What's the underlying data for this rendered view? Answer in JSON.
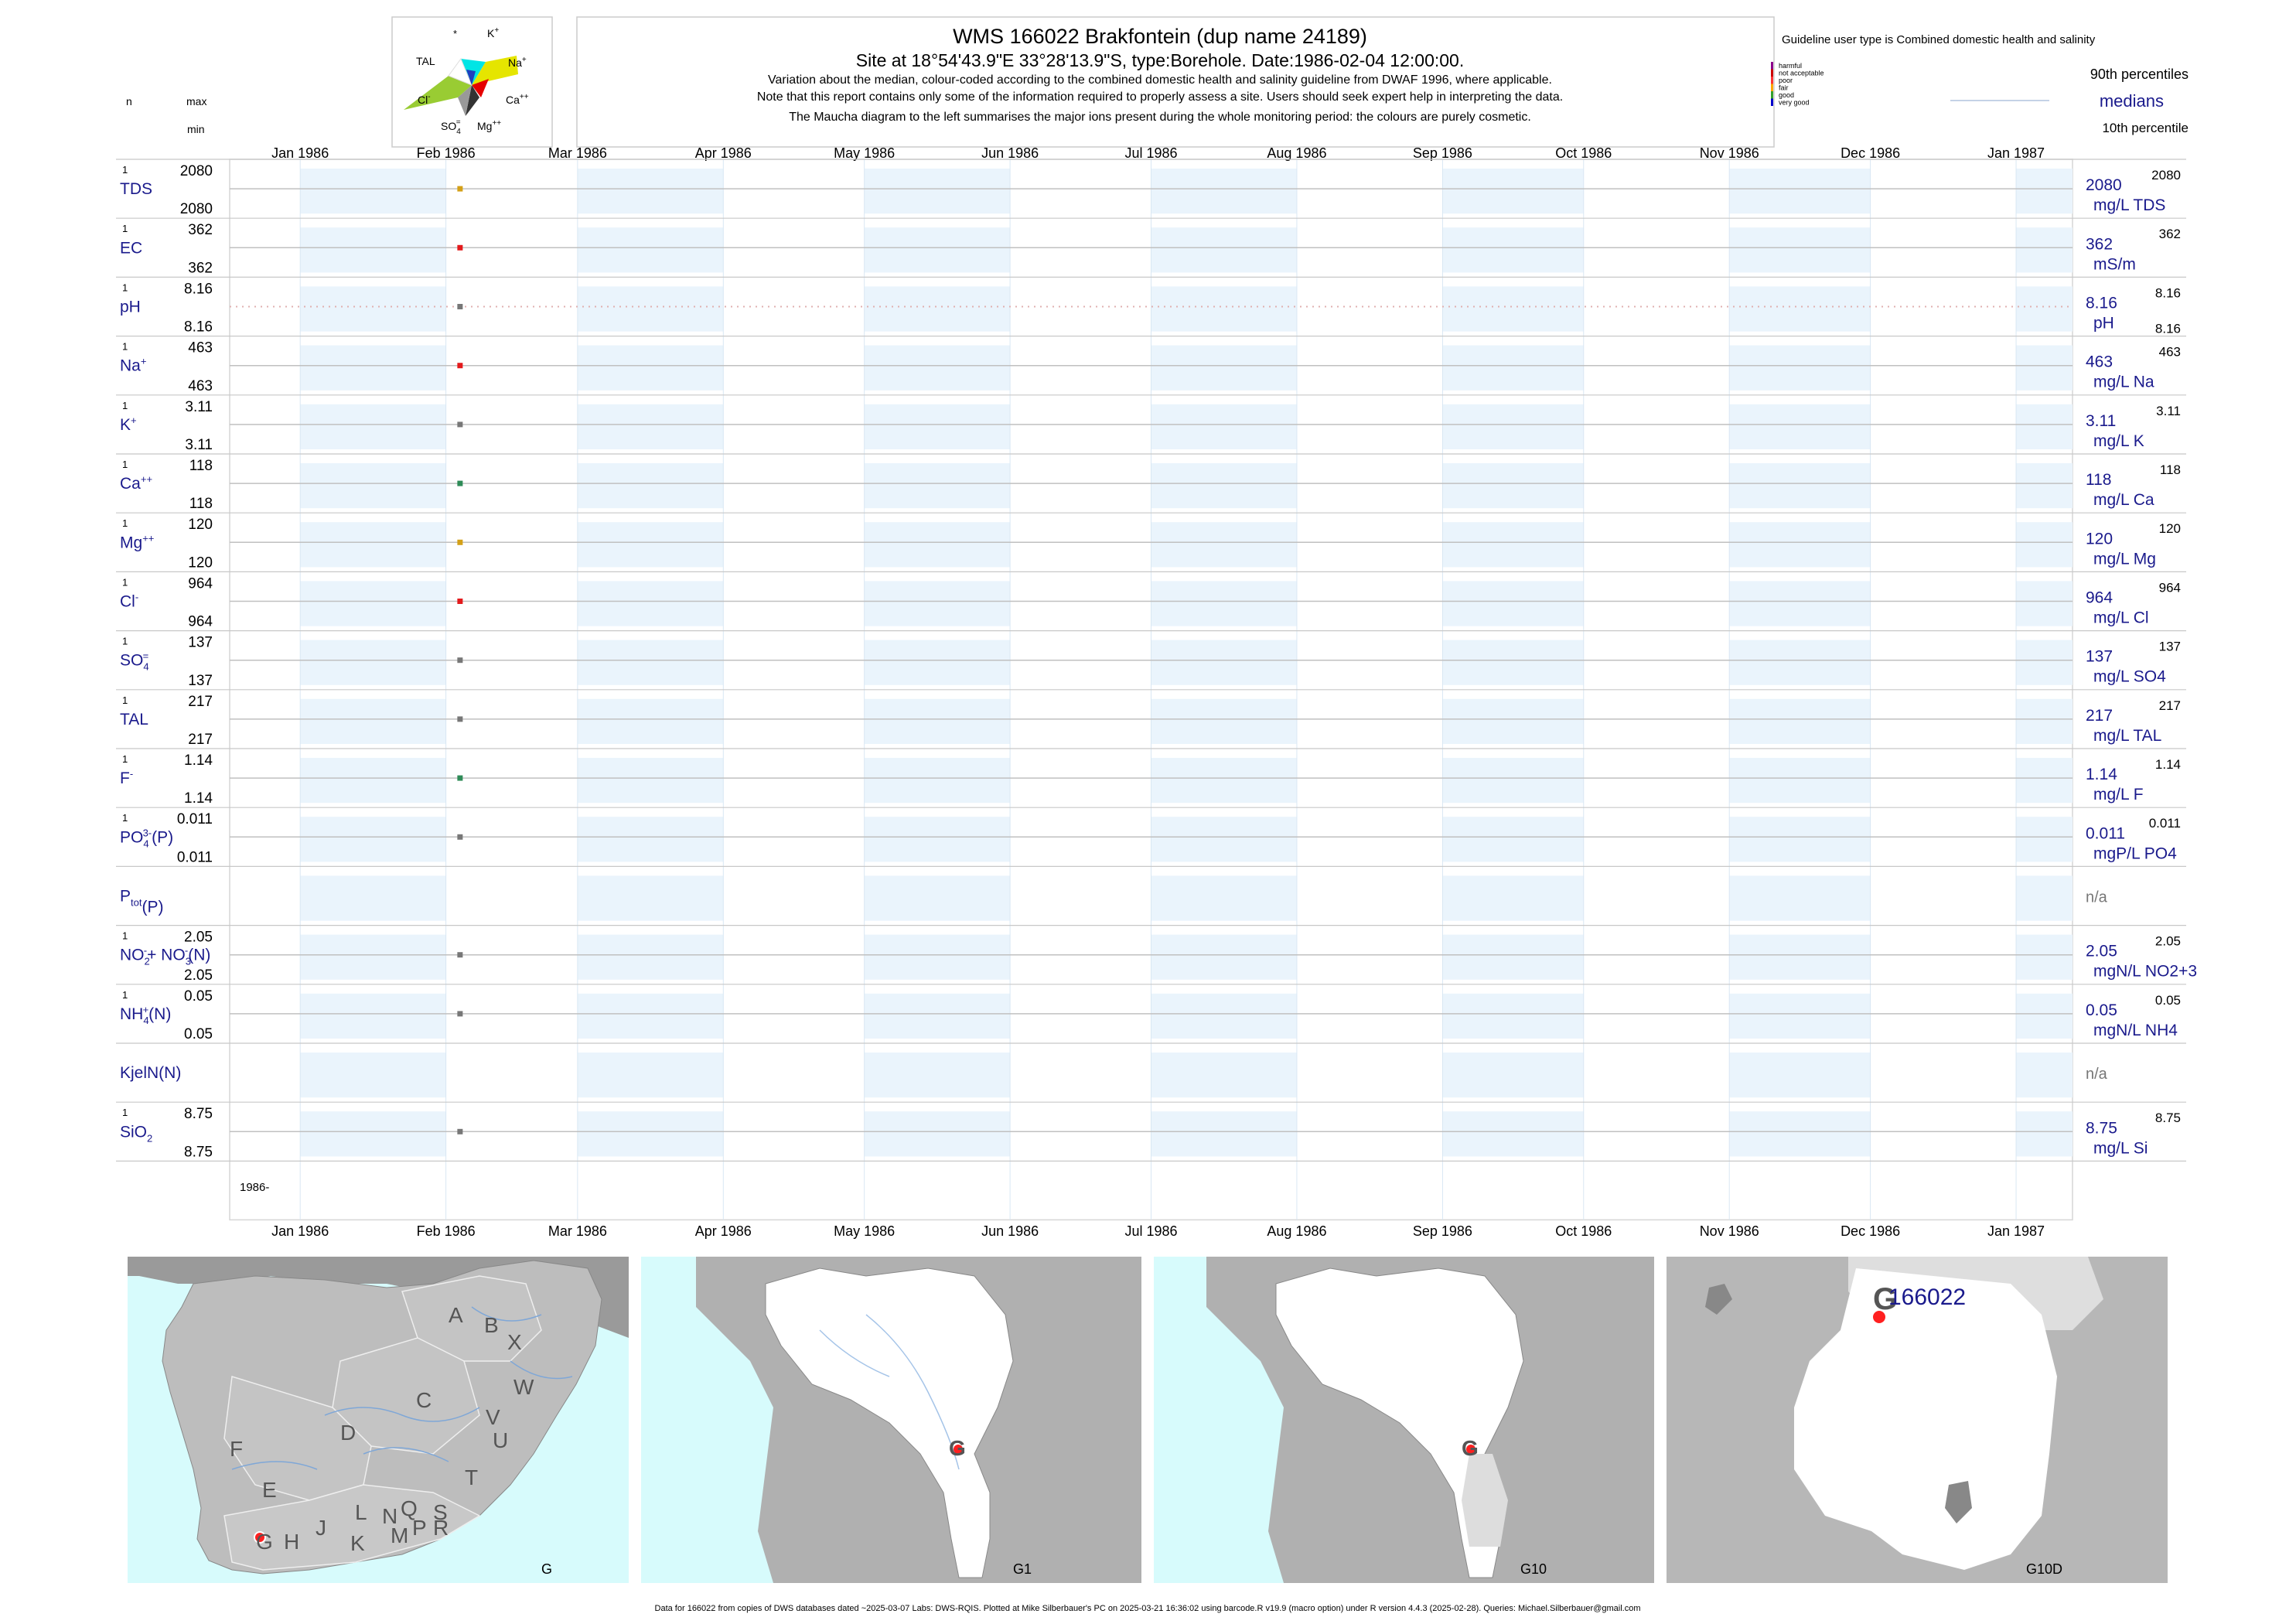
{
  "header": {
    "title": "WMS 166022  Brakfontein (dup name 24189)",
    "subtitle": "Site at 18°54'43.9\"E 33°28'13.9\"S, type:Borehole. Date:1986-02-04 12:00:00.",
    "line1": "Variation about the median,  colour-coded according to the combined domestic health and salinity guideline from DWAF 1996, where applicable.",
    "line2": "Note that this report contains only some of the information required to properly assess a site. Users should seek expert help in interpreting the data.",
    "line3": "The Maucha diagram to the left summarises the major ions present during the whole monitoring period: the colours are purely cosmetic."
  },
  "left_header": {
    "n": "n",
    "max": "max",
    "min": "min"
  },
  "maucha": {
    "labels": {
      "star": "*",
      "k": "K",
      "k_sup": "+",
      "tal": "TAL",
      "na": "Na",
      "na_sup": "+",
      "cl": "Cl",
      "cl_sup": "-",
      "ca": "Ca",
      "ca_sup": "++",
      "so4": "SO",
      "so4_sub": "4",
      "so4_sup": "=",
      "mg": "Mg",
      "mg_sup": "++"
    },
    "colors": {
      "k": "#00e5e5",
      "na": "#e5e500",
      "ca": "#e50000",
      "mg": "#333333",
      "so4": "#999999",
      "cl": "#99cc33",
      "tal": "#ffffff",
      "hco": "#1f3fbf"
    }
  },
  "legend": {
    "guideline": "Guideline user type is Combined domestic health and salinity",
    "classes": [
      {
        "label": "harmful",
        "color": "#8b008b"
      },
      {
        "label": "not acceptable",
        "color": "#cc0000"
      },
      {
        "label": "poor",
        "color": "#ff3333"
      },
      {
        "label": "fair",
        "color": "#ffa500"
      },
      {
        "label": "good",
        "color": "#33a02c"
      },
      {
        "label": "very good",
        "color": "#0000cc"
      }
    ],
    "p90": "90th percentiles",
    "medians": "medians",
    "p10": "10th percentile"
  },
  "chart_data": {
    "type": "scatter",
    "x_axis": {
      "ticks": [
        "Jan 1986",
        "Feb 1986",
        "Mar 1986",
        "Apr 1986",
        "May 1986",
        "Jun 1986",
        "Jul 1986",
        "Aug 1986",
        "Sep 1986",
        "Oct 1986",
        "Nov 1986",
        "Dec 1986",
        "Jan 1987"
      ],
      "xlim": [
        "1985-12-17",
        "1987-01-13"
      ]
    },
    "year_label": "1986-",
    "sample_date": "1986-02-04",
    "variables": [
      {
        "name": "TDS",
        "sup": "",
        "sub": "",
        "n": "1",
        "max": "2080",
        "min": "2080",
        "value": 2080,
        "median": "2080",
        "units": "mg/L TDS",
        "p90": "2080",
        "color": "#d4a017"
      },
      {
        "name": "EC",
        "sup": "",
        "sub": "",
        "n": "1",
        "max": "362",
        "min": "362",
        "value": 362,
        "median": "362",
        "units": "mS/m",
        "p90": "362",
        "color": "#e31a1c"
      },
      {
        "name": "pH",
        "sup": "",
        "sub": "",
        "n": "1",
        "max": "8.16",
        "min": "8.16",
        "value": 8.16,
        "median": "8.16",
        "units": "pH",
        "p90": "8.16",
        "p10": "8.16",
        "color": "#777777",
        "dotted": true
      },
      {
        "name": "Na",
        "sup": "+",
        "sub": "",
        "n": "1",
        "max": "463",
        "min": "463",
        "value": 463,
        "median": "463",
        "units": "mg/L Na",
        "p90": "463",
        "color": "#e31a1c"
      },
      {
        "name": "K",
        "sup": "+",
        "sub": "",
        "n": "1",
        "max": "3.11",
        "min": "3.11",
        "value": 3.11,
        "median": "3.11",
        "units": "mg/L K",
        "p90": "3.11",
        "color": "#777777"
      },
      {
        "name": "Ca",
        "sup": "++",
        "sub": "",
        "n": "1",
        "max": "118",
        "min": "118",
        "value": 118,
        "median": "118",
        "units": "mg/L Ca",
        "p90": "118",
        "color": "#2e8b57"
      },
      {
        "name": "Mg",
        "sup": "++",
        "sub": "",
        "n": "1",
        "max": "120",
        "min": "120",
        "value": 120,
        "median": "120",
        "units": "mg/L Mg",
        "p90": "120",
        "color": "#d4a017"
      },
      {
        "name": "Cl",
        "sup": "-",
        "sub": "",
        "n": "1",
        "max": "964",
        "min": "964",
        "value": 964,
        "median": "964",
        "units": "mg/L Cl",
        "p90": "964",
        "color": "#e31a1c"
      },
      {
        "name": "SO",
        "sup": "=",
        "sub": "4",
        "n": "1",
        "max": "137",
        "min": "137",
        "value": 137,
        "median": "137",
        "units": "mg/L SO4",
        "p90": "137",
        "color": "#777777"
      },
      {
        "name": "TAL",
        "sup": "",
        "sub": "",
        "n": "1",
        "max": "217",
        "min": "217",
        "value": 217,
        "median": "217",
        "units": "mg/L TAL",
        "p90": "217",
        "color": "#777777"
      },
      {
        "name": "F",
        "sup": "-",
        "sub": "",
        "n": "1",
        "max": "1.14",
        "min": "1.14",
        "value": 1.14,
        "median": "1.14",
        "units": "mg/L F",
        "p90": "1.14",
        "color": "#2e8b57"
      },
      {
        "name": "PO",
        "sup": "3-",
        "sub": "4",
        "suffix": "(P)",
        "n": "1",
        "max": "0.011",
        "min": "0.011",
        "value": 0.011,
        "median": "0.011",
        "units": "mgP/L PO4",
        "p90": "0.011",
        "color": "#777777"
      },
      {
        "name": "P",
        "sup": "",
        "sub": "tot",
        "suffix": "(P)",
        "n": "",
        "max": "",
        "min": "",
        "value": null,
        "median": "n/a",
        "units": "",
        "p90": "",
        "color": "#777777"
      },
      {
        "name": "NO",
        "sup": "-",
        "sub": "2",
        "suffix": "+ NO",
        "sup2": "-",
        "sub2": "3",
        "suffix2": "(N)",
        "n": "1",
        "max": "2.05",
        "min": "2.05",
        "value": 2.05,
        "median": "2.05",
        "units": "mgN/L NO2+3",
        "p90": "2.05",
        "color": "#777777"
      },
      {
        "name": "NH",
        "sup": "+",
        "sub": "4",
        "suffix": "(N)",
        "n": "1",
        "max": "0.05",
        "min": "0.05",
        "value": 0.05,
        "median": "0.05",
        "units": "mgN/L NH4",
        "p90": "0.05",
        "color": "#777777"
      },
      {
        "name": "KjelN(N)",
        "sup": "",
        "sub": "",
        "n": "",
        "max": "",
        "min": "",
        "value": null,
        "median": "n/a",
        "units": "",
        "p90": "",
        "color": "#777777"
      },
      {
        "name": "SiO",
        "sup": "",
        "sub": "2",
        "n": "1",
        "max": "8.75",
        "min": "8.75",
        "value": 8.75,
        "median": "8.75",
        "units": "mg/L Si",
        "p90": "8.75",
        "color": "#777777"
      }
    ]
  },
  "maps": [
    {
      "label": "G",
      "letters": [
        "A",
        "B",
        "X",
        "W",
        "C",
        "V",
        "D",
        "U",
        "T",
        "F",
        "E",
        "S",
        "R",
        "Q",
        "L",
        "N",
        "M",
        "P",
        "J",
        "K",
        "H",
        "G"
      ]
    },
    {
      "label": "G1",
      "marker": "G"
    },
    {
      "label": "G10",
      "marker": "G"
    },
    {
      "label": "G10D",
      "marker": "G",
      "site": "166022"
    }
  ],
  "footer": "Data for 166022 from copies of DWS databases dated ~2025-03-07 Labs: DWS-RQIS. Plotted at Mike Silberbauer's PC on 2025-03-21 16:36:02 using barcode.R v19.9 (macro option) under R version 4.4.3 (2025-02-28). Queries: Michael.Silberbauer@gmail.com"
}
